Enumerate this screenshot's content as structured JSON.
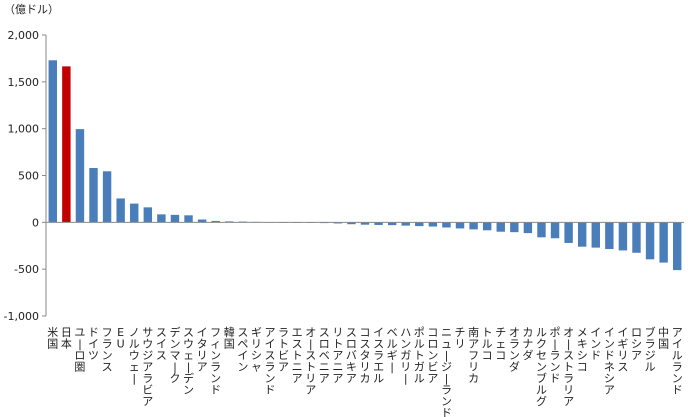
{
  "chart_data": {
    "type": "bar",
    "unit_label": "（億ドル）",
    "ylim": [
      -1000,
      2000
    ],
    "yticks": [
      2000,
      1500,
      1000,
      500,
      0,
      -500,
      -1000
    ],
    "ytick_labels": [
      "2,000",
      "1,500",
      "1,000",
      "500",
      "0",
      "-500",
      "-1,000"
    ],
    "grid": false,
    "legend": "none",
    "colors": {
      "default": "#4a7ebb",
      "highlight": "#c00000"
    },
    "highlight_category": "日本",
    "categories": [
      "米国",
      "日本",
      "ユーロ圏",
      "ドイツ",
      "フランス",
      "EU",
      "ノルウェー",
      "サウジアラビア",
      "スイス",
      "デンマーク",
      "スウェーデン",
      "イタリア",
      "フィンランド",
      "韓国",
      "スペイン",
      "ギリシャ",
      "アイスランド",
      "ラトビア",
      "エストニア",
      "オーストリア",
      "スロベニア",
      "リトアニア",
      "スロバキア",
      "コスタリカ",
      "イスラエル",
      "ベルギー",
      "ハンガリー",
      "ポルトガル",
      "コロンビア",
      "ニュージーランド",
      "チリ",
      "南アフリカ",
      "トルコ",
      "チェコ",
      "オランダ",
      "カナダ",
      "ルクセンブルグ",
      "ポーランド",
      "オーストラリア",
      "メキシコ",
      "インド",
      "インドネシア",
      "イギリス",
      "ロシア",
      "ブラジル",
      "中国",
      "アイルランド"
    ],
    "values": [
      1730,
      1665,
      995,
      580,
      545,
      255,
      200,
      160,
      85,
      80,
      75,
      30,
      15,
      10,
      8,
      5,
      2,
      0,
      -2,
      -5,
      -8,
      -12,
      -20,
      -25,
      -28,
      -30,
      -35,
      -40,
      -45,
      -55,
      -65,
      -75,
      -85,
      -100,
      -105,
      -115,
      -160,
      -170,
      -220,
      -260,
      -270,
      -285,
      -300,
      -325,
      -395,
      -430,
      -510
    ]
  }
}
